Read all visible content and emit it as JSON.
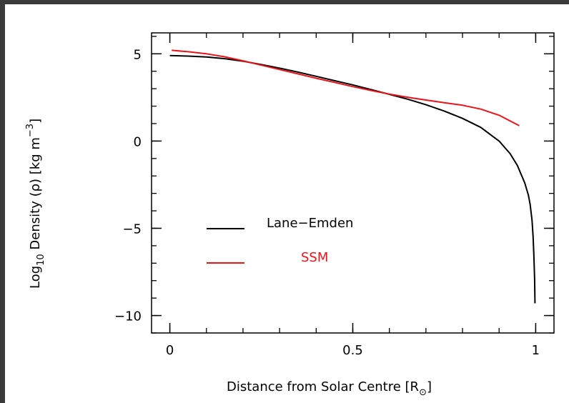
{
  "chart_data": {
    "type": "line",
    "title": "",
    "xlabel": {
      "main": "Distance from Solar Centre [R",
      "sub": "⊙",
      "close": "]"
    },
    "ylabel": {
      "pre": "Log",
      "sub": "10",
      "mid": " Density (ρ) [kg m",
      "sup": "−3",
      "close": "]"
    },
    "xlim": [
      -0.05,
      1.05
    ],
    "ylim": [
      -11,
      6.2
    ],
    "x_ticks": [
      {
        "value": 0,
        "label": "0"
      },
      {
        "value": 0.5,
        "label": "0.5"
      },
      {
        "value": 1,
        "label": "1"
      }
    ],
    "y_ticks": [
      {
        "value": 5,
        "label": "5"
      },
      {
        "value": 0,
        "label": "0"
      },
      {
        "value": -5,
        "label": "−5"
      },
      {
        "value": -10,
        "label": "−10"
      }
    ],
    "x_minor_step": 0.1,
    "y_minor_step": 1,
    "legend_position": "lower-left",
    "series": [
      {
        "name": "Lane−Emden",
        "color": "#000000",
        "x": [
          0.0,
          0.05,
          0.1,
          0.15,
          0.2,
          0.25,
          0.3,
          0.35,
          0.4,
          0.45,
          0.5,
          0.55,
          0.6,
          0.65,
          0.7,
          0.75,
          0.8,
          0.85,
          0.9,
          0.93,
          0.95,
          0.97,
          0.98,
          0.985,
          0.99,
          0.993,
          0.995,
          0.997,
          0.998
        ],
        "y": [
          4.9,
          4.87,
          4.82,
          4.72,
          4.58,
          4.38,
          4.18,
          3.95,
          3.71,
          3.46,
          3.22,
          2.95,
          2.68,
          2.4,
          2.08,
          1.72,
          1.3,
          0.78,
          0.0,
          -0.72,
          -1.4,
          -2.4,
          -3.1,
          -3.65,
          -4.55,
          -5.5,
          -6.5,
          -7.9,
          -9.3
        ]
      },
      {
        "name": "SSM",
        "color": "#e8141c",
        "x": [
          0.005,
          0.05,
          0.1,
          0.15,
          0.2,
          0.25,
          0.3,
          0.35,
          0.4,
          0.45,
          0.5,
          0.55,
          0.6,
          0.65,
          0.7,
          0.75,
          0.8,
          0.85,
          0.9,
          0.93,
          0.955
        ],
        "y": [
          5.2,
          5.12,
          5.0,
          4.83,
          4.6,
          4.35,
          4.1,
          3.85,
          3.6,
          3.36,
          3.12,
          2.9,
          2.69,
          2.51,
          2.35,
          2.2,
          2.05,
          1.83,
          1.48,
          1.15,
          0.88
        ]
      }
    ]
  }
}
